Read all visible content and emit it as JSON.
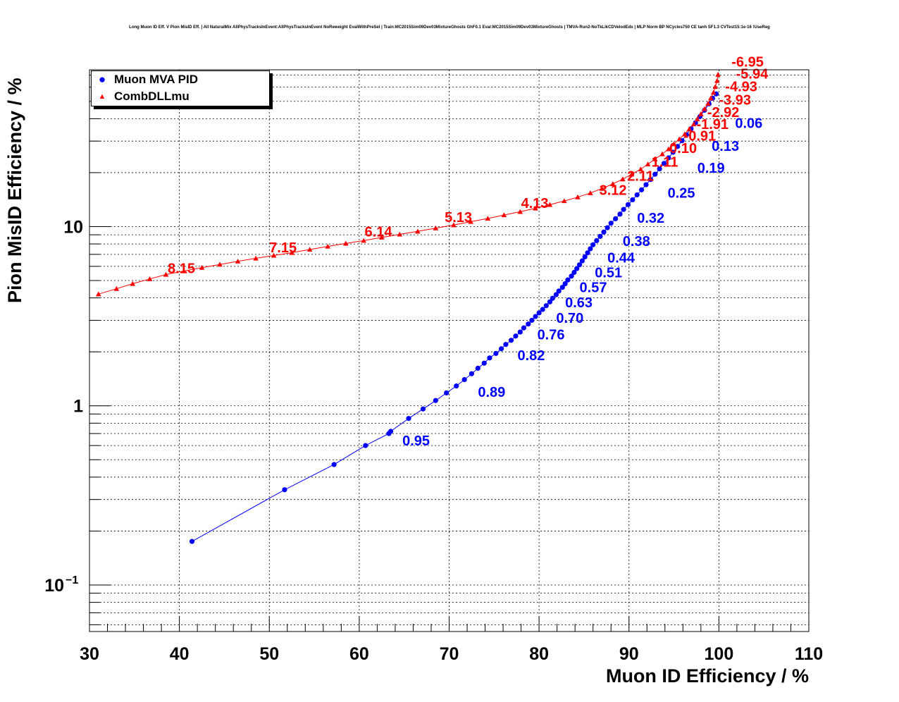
{
  "header": {
    "title": "Long Muon ID Eff. V Pion MisID Eff. | All NaturalMix AllPhysTracksInEvent:AllPhysTracksInEvent NoReweight EvalWithPreSel | Train:MC2015Sim09Dev03MixtureGhosts GhF0.1 Eval:MC2015Sim09Dev03MixtureGhosts | TMVA-Run2-NoTkLikCDVelodEdx | MLP Norm BP NCycles750 CE tanh SF1.3 CVTest15:1e-16 !UseReg"
  },
  "chart_data": {
    "type": "scatter",
    "title": "Long Muon ID Eff. V Pion MisID Eff. | All NaturalMix AllPhysTracksInEvent:AllPhysTracksInEvent NoReweight EvalWithPreSel | Train:MC2015Sim09Dev03MixtureGhosts GhF0.1 Eval:MC2015Sim09Dev03MixtureGhosts | TMVA-Run2-NoTkLikCDVelodEdx | MLP Norm BP NCycles750 CE tanh SF1.3 CVTest15:1e-16 !UseReg",
    "xlabel": "Muon ID Efficiency / %",
    "ylabel": "Pion MisID Efficiency / %",
    "xlim": [
      30,
      110
    ],
    "ylim": [
      0.055,
      75
    ],
    "yscale": "log",
    "grid": true,
    "legend_position": "top-left",
    "x_ticks": [
      30,
      40,
      50,
      60,
      70,
      80,
      90,
      100,
      110
    ],
    "y_ticks": [
      {
        "value": 0.1,
        "base": "10",
        "exp": "−1",
        "plain": ""
      },
      {
        "value": 1,
        "base": "",
        "exp": "",
        "plain": "1"
      },
      {
        "value": 10,
        "base": "",
        "exp": "",
        "plain": "10"
      }
    ],
    "series": [
      {
        "name": "Muon MVA PID",
        "color": "#0000ff",
        "marker": "circle",
        "x": [
          41.4,
          51.7,
          57.2,
          60.7,
          63.3,
          63.5,
          65.5,
          67.1,
          68.5,
          69.7,
          70.8,
          71.7,
          72.5,
          73.2,
          73.9,
          74.5,
          75.2,
          75.8,
          76.3,
          76.9,
          77.4,
          77.9,
          78.3,
          78.8,
          79.2,
          79.6,
          80.0,
          80.4,
          80.8,
          81.2,
          81.5,
          81.9,
          82.2,
          82.6,
          82.9,
          83.2,
          83.6,
          83.9,
          84.2,
          84.5,
          84.8,
          85.1,
          85.4,
          85.7,
          86.0,
          86.4,
          86.8,
          87.2,
          87.6,
          88.0,
          88.5,
          89.0,
          89.4,
          89.9,
          90.4,
          90.9,
          91.4,
          91.9,
          92.4,
          92.9,
          93.4,
          93.9,
          94.4,
          94.9,
          95.4,
          95.9,
          96.4,
          96.9,
          97.4,
          97.9,
          98.4,
          98.9,
          99.3,
          99.7
        ],
        "y": [
          0.175,
          0.34,
          0.47,
          0.6,
          0.7,
          0.72,
          0.85,
          0.96,
          1.07,
          1.18,
          1.29,
          1.4,
          1.51,
          1.62,
          1.73,
          1.85,
          1.96,
          2.08,
          2.2,
          2.32,
          2.45,
          2.58,
          2.72,
          2.86,
          3.0,
          3.15,
          3.3,
          3.45,
          3.62,
          3.8,
          3.98,
          4.17,
          4.37,
          4.58,
          4.8,
          5.04,
          5.29,
          5.55,
          5.83,
          6.12,
          6.44,
          6.78,
          7.14,
          7.52,
          7.92,
          8.35,
          8.82,
          9.32,
          9.86,
          10.44,
          11.06,
          11.74,
          12.47,
          13.26,
          14.11,
          15.04,
          16.04,
          17.13,
          18.31,
          19.6,
          21.0,
          22.52,
          24.18,
          26.0,
          27.98,
          30.15,
          32.53,
          35.14,
          38.0,
          41.14,
          44.6,
          48.4,
          52.0,
          55.0
        ],
        "labels": [
          {
            "x": 64.8,
            "y": 0.6,
            "text": "0.95"
          },
          {
            "x": 73.2,
            "y": 1.12,
            "text": "0.89"
          },
          {
            "x": 77.6,
            "y": 1.8,
            "text": "0.82"
          },
          {
            "x": 79.8,
            "y": 2.35,
            "text": "0.76"
          },
          {
            "x": 81.9,
            "y": 2.9,
            "text": "0.70"
          },
          {
            "x": 82.9,
            "y": 3.55,
            "text": "0.63"
          },
          {
            "x": 84.5,
            "y": 4.3,
            "text": "0.57"
          },
          {
            "x": 86.2,
            "y": 5.2,
            "text": "0.51"
          },
          {
            "x": 87.6,
            "y": 6.3,
            "text": "0.44"
          },
          {
            "x": 89.3,
            "y": 7.8,
            "text": "0.38"
          },
          {
            "x": 90.9,
            "y": 10.5,
            "text": "0.32"
          },
          {
            "x": 94.3,
            "y": 14.5,
            "text": "0.25"
          },
          {
            "x": 97.6,
            "y": 20.0,
            "text": "0.19"
          },
          {
            "x": 99.2,
            "y": 26.5,
            "text": "0.13"
          },
          {
            "x": 101.8,
            "y": 35.5,
            "text": "0.06"
          }
        ]
      },
      {
        "name": "CombDLLmu",
        "color": "#ff0000",
        "marker": "triangle",
        "x": [
          31.0,
          33.0,
          34.8,
          36.7,
          38.5,
          40.5,
          42.5,
          44.5,
          46.5,
          48.5,
          50.5,
          52.5,
          54.5,
          56.5,
          58.5,
          60.5,
          62.5,
          64.5,
          66.5,
          68.5,
          70.5,
          72.4,
          74.3,
          76.1,
          77.9,
          79.6,
          81.2,
          82.8,
          84.3,
          85.7,
          87.0,
          88.2,
          89.3,
          90.3,
          91.3,
          92.1,
          92.9,
          93.7,
          94.4,
          95.0,
          95.6,
          96.2,
          96.7,
          97.2,
          97.6,
          98.0,
          98.4,
          98.8,
          99.1,
          99.4,
          99.6,
          99.8,
          99.9
        ],
        "y": [
          4.2,
          4.5,
          4.8,
          5.1,
          5.4,
          5.65,
          5.9,
          6.15,
          6.4,
          6.65,
          6.9,
          7.15,
          7.45,
          7.75,
          8.05,
          8.35,
          8.7,
          9.05,
          9.4,
          9.8,
          10.2,
          10.65,
          11.1,
          11.6,
          12.1,
          12.65,
          13.25,
          13.9,
          14.6,
          15.4,
          16.3,
          17.3,
          18.4,
          19.6,
          20.9,
          22.3,
          23.8,
          25.4,
          27.1,
          28.9,
          30.8,
          32.8,
          35.0,
          37.3,
          39.8,
          42.5,
          45.4,
          48.6,
          52.1,
          56.0,
          60.3,
          65.1,
          70.5
        ],
        "labels": [
          {
            "x": 38.7,
            "y": 5.5,
            "text": "8.15"
          },
          {
            "x": 50.0,
            "y": 7.2,
            "text": "7.15"
          },
          {
            "x": 60.6,
            "y": 8.8,
            "text": "6.14"
          },
          {
            "x": 69.5,
            "y": 10.6,
            "text": "5.13"
          },
          {
            "x": 78.0,
            "y": 12.7,
            "text": "4.13"
          },
          {
            "x": 86.7,
            "y": 15.0,
            "text": "3.12"
          },
          {
            "x": 89.8,
            "y": 18.0,
            "text": "2.11"
          },
          {
            "x": 92.5,
            "y": 21.6,
            "text": "1.11"
          },
          {
            "x": 94.5,
            "y": 25.8,
            "text": "0.10"
          },
          {
            "x": 96.1,
            "y": 30.2,
            "text": "-0.91"
          },
          {
            "x": 97.5,
            "y": 35.0,
            "text": "-1.91"
          },
          {
            "x": 98.7,
            "y": 40.8,
            "text": "-2.92"
          },
          {
            "x": 100.0,
            "y": 48.0,
            "text": "-3.93"
          },
          {
            "x": 100.7,
            "y": 57.0,
            "text": "-4.93"
          },
          {
            "x": 101.9,
            "y": 67.0,
            "text": "-5.94"
          },
          {
            "x": 101.4,
            "y": 78.0,
            "text": "-6.95"
          }
        ]
      }
    ]
  }
}
